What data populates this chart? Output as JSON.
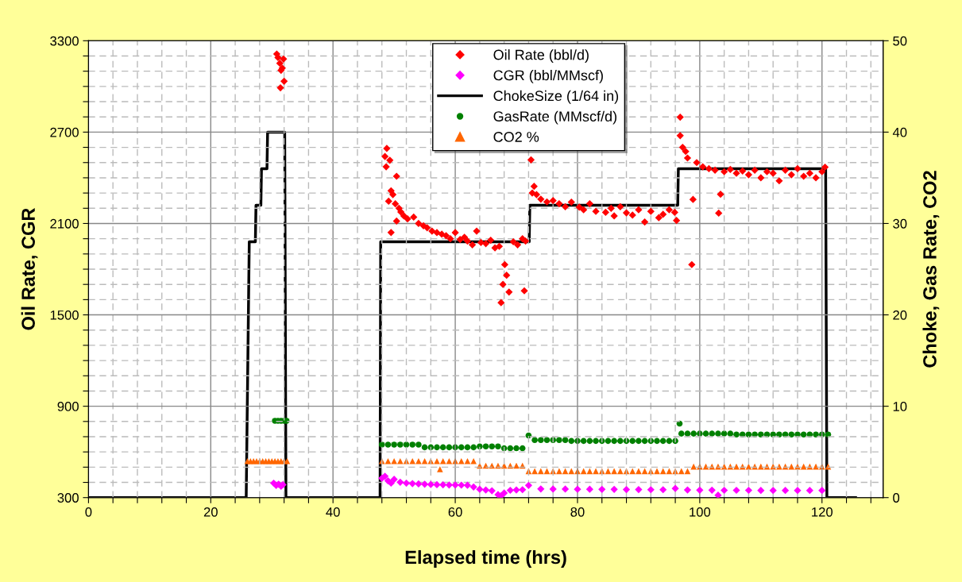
{
  "chart_data": {
    "type": "scatter",
    "xlabel": "Elapsed time (hrs)",
    "ylabel": "Oil Rate, CGR",
    "y2label": "Choke, Gas Rate, CO2",
    "xlim": [
      0,
      130
    ],
    "xticks": [
      0,
      {
        "value": 4,
        "label": null
      },
      {
        "value": 8,
        "label": null
      },
      {
        "value": 12,
        "label": null
      },
      {
        "value": 16,
        "label": null
      },
      20,
      {
        "value": 24,
        "label": null
      },
      {
        "value": 28,
        "label": null
      },
      {
        "value": 32,
        "label": null
      },
      {
        "value": 36,
        "label": null
      },
      40,
      {
        "value": 44,
        "label": null
      },
      {
        "value": 48,
        "label": null
      },
      {
        "value": 52,
        "label": null
      },
      {
        "value": 56,
        "label": null
      },
      60,
      {
        "value": 64,
        "label": null
      },
      {
        "value": 68,
        "label": null
      },
      {
        "value": 72,
        "label": null
      },
      {
        "value": 76,
        "label": null
      },
      80,
      {
        "value": 84,
        "label": null
      },
      {
        "value": 88,
        "label": null
      },
      {
        "value": 92,
        "label": null
      },
      {
        "value": 96,
        "label": null
      },
      100,
      {
        "value": 104,
        "label": null
      },
      {
        "value": 108,
        "label": null
      },
      {
        "value": 112,
        "label": null
      },
      {
        "value": 116,
        "label": null
      },
      120,
      {
        "value": 124,
        "label": null
      },
      {
        "value": 128,
        "label": null
      }
    ],
    "ylim": [
      300,
      3300
    ],
    "yticks": [
      300,
      {
        "value": 400,
        "label": null
      },
      {
        "value": 500,
        "label": null
      },
      {
        "value": 600,
        "label": null
      },
      {
        "value": 700,
        "label": null
      },
      {
        "value": 800,
        "label": null
      },
      900,
      {
        "value": 1000,
        "label": null
      },
      {
        "value": 1100,
        "label": null
      },
      {
        "value": 1200,
        "label": null
      },
      {
        "value": 1300,
        "label": null
      },
      {
        "value": 1400,
        "label": null
      },
      1500,
      {
        "value": 1600,
        "label": null
      },
      {
        "value": 1700,
        "label": null
      },
      {
        "value": 1800,
        "label": null
      },
      {
        "value": 1900,
        "label": null
      },
      {
        "value": 2000,
        "label": null
      },
      2100,
      {
        "value": 2200,
        "label": null
      },
      {
        "value": 2300,
        "label": null
      },
      {
        "value": 2400,
        "label": null
      },
      {
        "value": 2500,
        "label": null
      },
      {
        "value": 2600,
        "label": null
      },
      2700,
      {
        "value": 2800,
        "label": null
      },
      {
        "value": 2900,
        "label": null
      },
      {
        "value": 3000,
        "label": null
      },
      {
        "value": 3100,
        "label": null
      },
      {
        "value": 3200,
        "label": null
      },
      3300
    ],
    "y2lim": [
      0,
      50
    ],
    "y2ticks": [
      0,
      10,
      20,
      30,
      40,
      50
    ],
    "grid": true,
    "legend": "top",
    "series": [
      {
        "name": "Oil Rate (bbl/d)",
        "marker": "diamond",
        "color": "#ff0000",
        "x": [
          30.8,
          31.0,
          31.3,
          31.5,
          31.7,
          32.0,
          31.4,
          31.9,
          48.5,
          48.7,
          48.8,
          49.1,
          49.3,
          49.5,
          49.5,
          49.8,
          50.2,
          50.4,
          50.4,
          50.8,
          51.1,
          51.6,
          52.2,
          53.2,
          54,
          54.8,
          55.4,
          56.2,
          57,
          57.8,
          58.5,
          59.2,
          60,
          60.8,
          61.5,
          62,
          62.8,
          63.5,
          64.2,
          65,
          65.8,
          66.5,
          67.2,
          67.5,
          67.8,
          68.1,
          68.4,
          68.8,
          69.5,
          70.2,
          71,
          71.3,
          71.5,
          72.4,
          72.6,
          72.9,
          73.3,
          74,
          75,
          76,
          77,
          78,
          79,
          80.3,
          81,
          82,
          83,
          84.6,
          85.5,
          86,
          87,
          88,
          89,
          90,
          91,
          92,
          93.3,
          94,
          95,
          95.9,
          96.2,
          96.8,
          96.8,
          97.2,
          97.7,
          98,
          98.7,
          98.9,
          99.5,
          100.5,
          101.5,
          102.5,
          103.1,
          103.4,
          104,
          105,
          106,
          107,
          108,
          109,
          110,
          111,
          112,
          113,
          114,
          115,
          116,
          117,
          118,
          119,
          120,
          120.5
        ],
        "values": [
          3213,
          3190,
          3152,
          3106,
          3120,
          3034,
          2991,
          3180,
          2540,
          2472,
          2593,
          2246,
          2515,
          2315,
          2041,
          2290,
          2229,
          2410,
          2116,
          2200,
          2176,
          2150,
          2130,
          2142,
          2100,
          2085,
          2072,
          2050,
          2040,
          2030,
          2020,
          2000,
          2040,
          1995,
          2010,
          1985,
          1960,
          2050,
          1975,
          1968,
          1990,
          1940,
          1950,
          1580,
          1700,
          1830,
          1760,
          1650,
          1980,
          1960,
          2000,
          1658,
          1985,
          2518,
          2300,
          2344,
          2290,
          2260,
          2242,
          2250,
          2230,
          2210,
          2240,
          2207,
          2190,
          2230,
          2180,
          2173,
          2200,
          2150,
          2210,
          2170,
          2155,
          2190,
          2110,
          2180,
          2138,
          2160,
          2190,
          2173,
          2120,
          2798,
          2677,
          2600,
          2573,
          2530,
          1830,
          2258,
          2500,
          2472,
          2460,
          2450,
          2168,
          2292,
          2440,
          2455,
          2430,
          2445,
          2420,
          2450,
          2400,
          2440,
          2430,
          2380,
          2450,
          2420,
          2460,
          2410,
          2430,
          2400,
          2440,
          2470
        ]
      },
      {
        "name": "CGR (bbl/MMscf)",
        "marker": "diamond",
        "color": "#ff00ff",
        "x": [
          30.3,
          30.7,
          31.1,
          31.5,
          31.8,
          48,
          48.5,
          49,
          49.5,
          50,
          51,
          52,
          53,
          54,
          55,
          56,
          57,
          58,
          59,
          60,
          61,
          62,
          63,
          64,
          65,
          66,
          67,
          67.5,
          68,
          69,
          70,
          71,
          72,
          74,
          76,
          78,
          80,
          82,
          84,
          86,
          88,
          90,
          92,
          94,
          96,
          98,
          100,
          102,
          103,
          104,
          106,
          108,
          110,
          112,
          114,
          116,
          118,
          120
        ],
        "values": [
          395,
          380,
          388,
          375,
          385,
          427,
          440,
          410,
          395,
          420,
          401,
          395,
          392,
          390,
          388,
          386,
          385,
          384,
          383,
          383,
          382,
          381,
          370,
          355,
          350,
          345,
          320,
          312,
          330,
          348,
          350,
          352,
          380,
          357,
          356,
          356,
          355,
          355,
          354,
          354,
          353,
          353,
          352,
          352,
          360,
          350,
          349,
          349,
          316,
          348,
          348,
          348,
          347,
          347,
          347,
          347,
          347,
          347
        ]
      },
      {
        "name": "ChokeSize (1/64 in)",
        "type": "line",
        "axis": "y2",
        "marker": "none",
        "line_style": "solid",
        "color": "#000000",
        "x": [
          0,
          25.8,
          26.3,
          27.3,
          27.4,
          28.2,
          28.3,
          29.2,
          29.3,
          32.1,
          32.3,
          47.7,
          47.8,
          72.1,
          72.2,
          96.4,
          96.5,
          120.6,
          120.8,
          125.5
        ],
        "values": [
          0,
          0,
          28,
          28,
          32,
          32,
          36,
          36,
          40,
          40,
          0,
          0,
          28,
          28,
          32,
          32,
          36,
          36,
          0,
          0
        ]
      },
      {
        "name": "GasRate (MMscf/d)",
        "axis": "y2",
        "marker": "circle",
        "color": "#008000",
        "x": [
          30.5,
          31,
          31.5,
          32,
          32.4,
          48,
          49,
          50,
          51,
          52,
          53,
          54,
          55,
          56,
          57,
          58,
          59,
          60,
          61,
          62,
          63,
          64,
          65,
          66,
          67,
          68,
          69,
          70,
          71,
          72,
          73,
          74,
          75,
          76,
          77,
          78,
          79,
          80,
          81,
          82,
          83,
          84,
          85,
          86,
          87,
          88,
          89,
          90,
          91,
          92,
          93,
          94,
          95,
          96,
          96.7,
          97,
          98,
          99,
          100,
          101,
          102,
          103,
          104,
          105,
          106,
          107,
          108,
          109,
          110,
          111,
          112,
          113,
          114,
          115,
          116,
          117,
          118,
          119,
          120,
          121
        ],
        "values": [
          8.4,
          8.4,
          8.4,
          8.4,
          8.4,
          5.8,
          5.8,
          5.8,
          5.8,
          5.8,
          5.8,
          5.8,
          5.5,
          5.5,
          5.5,
          5.5,
          5.5,
          5.5,
          5.5,
          5.5,
          5.5,
          5.6,
          5.6,
          5.6,
          5.6,
          5.4,
          5.4,
          5.4,
          5.4,
          6.8,
          6.3,
          6.3,
          6.3,
          6.3,
          6.3,
          6.3,
          6.2,
          6.2,
          6.2,
          6.2,
          6.2,
          6.2,
          6.2,
          6.2,
          6.2,
          6.2,
          6.2,
          6.2,
          6.2,
          6.2,
          6.2,
          6.2,
          6.2,
          6.2,
          8.1,
          7.0,
          7.0,
          7.0,
          7.0,
          7.0,
          7.0,
          7.0,
          7.0,
          7.0,
          6.9,
          6.9,
          6.9,
          6.9,
          6.9,
          6.9,
          6.9,
          6.9,
          6.9,
          6.9,
          6.9,
          6.9,
          6.9,
          6.9,
          6.9,
          6.9
        ]
      },
      {
        "name": "CO2 %",
        "axis": "y2",
        "marker": "triangle",
        "color": "#ff6600",
        "x": [
          26,
          26.5,
          27,
          27.5,
          28,
          28.5,
          29,
          29.5,
          30,
          30.5,
          31,
          31.5,
          32,
          32.5,
          48,
          49,
          50,
          51,
          52,
          53,
          54,
          55,
          56,
          57,
          57.5,
          58,
          59,
          60,
          61,
          62,
          63,
          64,
          65,
          66,
          67,
          68,
          69,
          70,
          71,
          72,
          73,
          74,
          75,
          76,
          77,
          78,
          79,
          80,
          81,
          82,
          83,
          84,
          85,
          86,
          87,
          88,
          89,
          90,
          91,
          92,
          93,
          94,
          95,
          96,
          97,
          98,
          99,
          100,
          101,
          102,
          103,
          104,
          105,
          106,
          107,
          108,
          109,
          110,
          111,
          112,
          113,
          114,
          115,
          116,
          117,
          118,
          119,
          120,
          121
        ],
        "values": [
          4.0,
          4.0,
          4.0,
          4.0,
          4.0,
          4.0,
          4.0,
          4.0,
          4.0,
          4.0,
          4.0,
          4.0,
          4.0,
          4.0,
          4.0,
          4.0,
          4.0,
          4.0,
          4.0,
          4.0,
          4.0,
          4.0,
          4.0,
          4.0,
          3.1,
          4.0,
          4.0,
          4.0,
          4.0,
          4.0,
          4.0,
          3.5,
          3.5,
          3.5,
          3.5,
          3.5,
          3.5,
          3.5,
          3.5,
          2.9,
          2.9,
          2.9,
          2.9,
          2.9,
          2.9,
          2.9,
          2.9,
          2.9,
          2.9,
          2.9,
          2.9,
          2.9,
          2.9,
          2.9,
          2.9,
          2.9,
          2.9,
          2.9,
          2.9,
          2.9,
          2.9,
          2.9,
          2.9,
          2.9,
          2.9,
          2.9,
          3.4,
          3.4,
          3.4,
          3.4,
          3.4,
          3.4,
          3.4,
          3.4,
          3.4,
          3.4,
          3.4,
          3.4,
          3.4,
          3.4,
          3.4,
          3.4,
          3.4,
          3.4,
          3.4,
          3.4,
          3.4,
          3.4,
          3.4
        ]
      }
    ]
  }
}
